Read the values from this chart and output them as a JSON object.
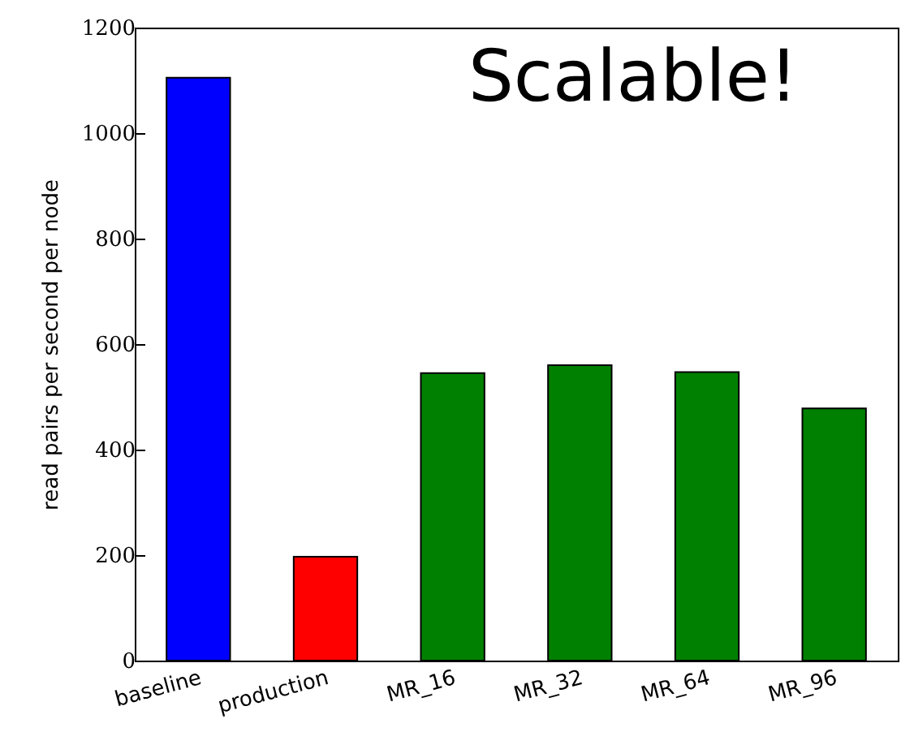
{
  "chart_data": {
    "type": "bar",
    "ylabel": "read pairs per second per node",
    "categories": [
      "baseline",
      "production",
      "MR_16",
      "MR_32",
      "MR_64",
      "MR_96"
    ],
    "values": [
      1105,
      197,
      545,
      560,
      547,
      478
    ],
    "colors": [
      "#0000ff",
      "#ff0000",
      "#008000",
      "#008000",
      "#008000",
      "#008000"
    ],
    "ylim": [
      0,
      1200
    ],
    "yticks": [
      0,
      200,
      400,
      600,
      800,
      1000,
      1200
    ],
    "annotations": [
      "Scalable!"
    ],
    "grid": false
  }
}
